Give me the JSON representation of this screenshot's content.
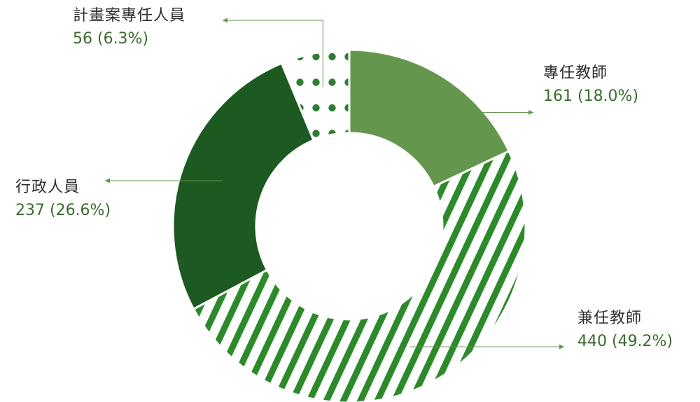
{
  "chart_data": {
    "type": "pie",
    "variant": "donut",
    "title": "",
    "series": [
      {
        "name": "專任教師",
        "value": 161,
        "percent": "18.0%",
        "display": "161 (18.0%)",
        "color": "#64974d",
        "fill": "solid"
      },
      {
        "name": "兼任教師",
        "value": 440,
        "percent": "49.2%",
        "display": "440 (49.2%)",
        "color": "#2d8a2b",
        "fill": "diagonal-stripes"
      },
      {
        "name": "行政人員",
        "value": 237,
        "percent": "26.6%",
        "display": "237 (26.6%)",
        "color": "#1d5a21",
        "fill": "solid"
      },
      {
        "name": "計畫案專任人員",
        "value": 56,
        "percent": "6.3%",
        "display": "56 (6.3%)",
        "color": "#2e7d32",
        "fill": "dots"
      }
    ],
    "legend": "callout-labels"
  }
}
